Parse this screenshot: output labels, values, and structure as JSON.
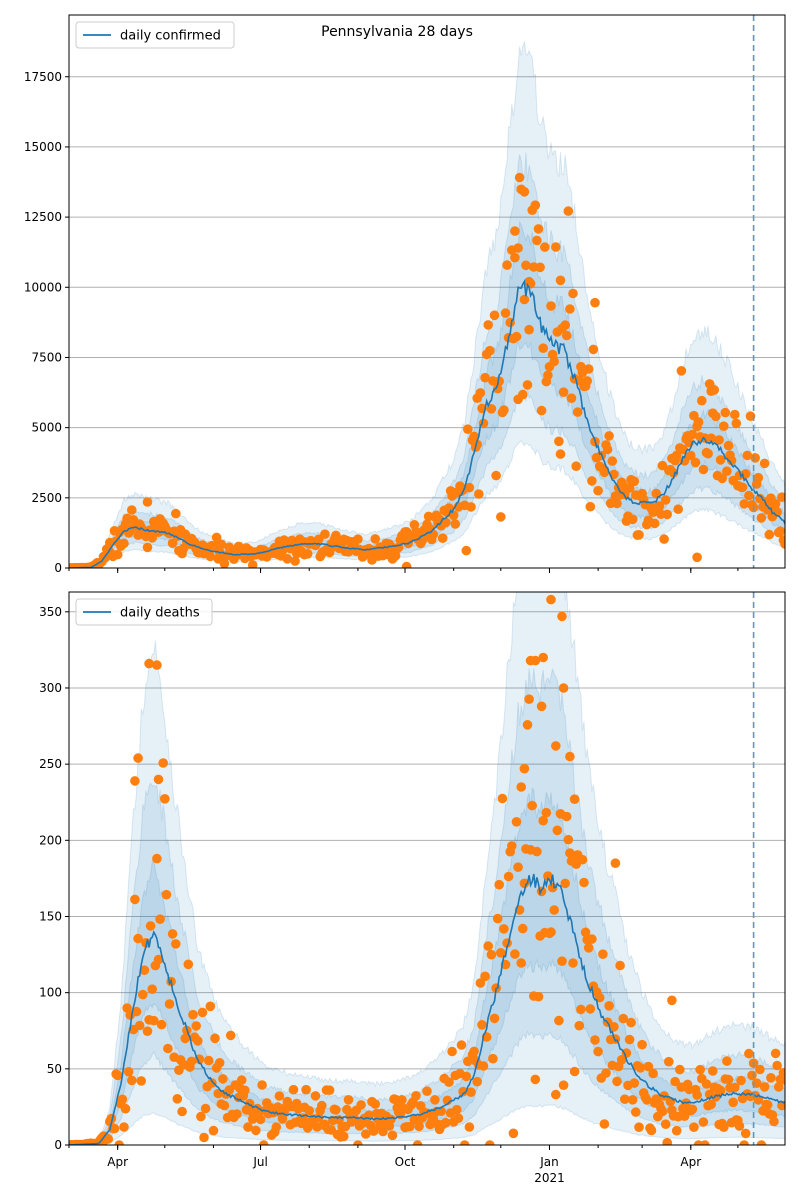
{
  "title": "Pennsylvania 28 days",
  "colors": {
    "line": "#1f77b4",
    "points": "#ff7f0e",
    "band": "#1f77b4",
    "grid": "#b0b0b0",
    "vline": "#5f9ab8"
  },
  "x_axis": {
    "start_date": "2020-03-01",
    "end_date": "2021-05-31",
    "ticks": [
      {
        "date": "2020-04-01",
        "label": "Apr"
      },
      {
        "date": "2020-07-01",
        "label": "Jul"
      },
      {
        "date": "2020-10-01",
        "label": "Oct"
      },
      {
        "date": "2021-01-01",
        "label": "Jan"
      },
      {
        "date": "2021-04-01",
        "label": "Apr"
      }
    ],
    "year_label": {
      "date": "2021-01-01",
      "label": "2021"
    },
    "vline_date": "2021-05-11"
  },
  "chart_data": [
    {
      "type": "line",
      "legend": "daily confirmed",
      "legend_loc": "upper-left",
      "ylim": [
        0,
        19700
      ],
      "yticks": [
        0,
        2500,
        5000,
        7500,
        10000,
        12500,
        15000,
        17500
      ],
      "grid": "horizontal",
      "line": [
        [
          "2020-03-01",
          0
        ],
        [
          "2020-03-15",
          20
        ],
        [
          "2020-03-22",
          250
        ],
        [
          "2020-03-29",
          800
        ],
        [
          "2020-04-05",
          1300
        ],
        [
          "2020-04-12",
          1450
        ],
        [
          "2020-04-19",
          1350
        ],
        [
          "2020-04-26",
          1300
        ],
        [
          "2020-05-03",
          1250
        ],
        [
          "2020-05-10",
          1050
        ],
        [
          "2020-05-17",
          850
        ],
        [
          "2020-05-24",
          700
        ],
        [
          "2020-06-01",
          600
        ],
        [
          "2020-06-14",
          480
        ],
        [
          "2020-06-28",
          500
        ],
        [
          "2020-07-12",
          700
        ],
        [
          "2020-07-26",
          850
        ],
        [
          "2020-08-09",
          850
        ],
        [
          "2020-08-23",
          720
        ],
        [
          "2020-09-06",
          650
        ],
        [
          "2020-09-20",
          750
        ],
        [
          "2020-10-04",
          900
        ],
        [
          "2020-10-18",
          1300
        ],
        [
          "2020-11-01",
          2100
        ],
        [
          "2020-11-08",
          2800
        ],
        [
          "2020-11-15",
          4300
        ],
        [
          "2020-11-22",
          5800
        ],
        [
          "2020-11-29",
          6500
        ],
        [
          "2020-12-06",
          8200
        ],
        [
          "2020-12-13",
          10000
        ],
        [
          "2020-12-20",
          9800
        ],
        [
          "2020-12-27",
          8500
        ],
        [
          "2021-01-03",
          7900
        ],
        [
          "2021-01-10",
          7800
        ],
        [
          "2021-01-17",
          6800
        ],
        [
          "2021-01-24",
          5400
        ],
        [
          "2021-01-31",
          4400
        ],
        [
          "2021-02-07",
          3500
        ],
        [
          "2021-02-14",
          2800
        ],
        [
          "2021-02-21",
          2400
        ],
        [
          "2021-02-28",
          2300
        ],
        [
          "2021-03-07",
          2300
        ],
        [
          "2021-03-14",
          2600
        ],
        [
          "2021-03-21",
          3200
        ],
        [
          "2021-03-28",
          4000
        ],
        [
          "2021-04-04",
          4500
        ],
        [
          "2021-04-11",
          4600
        ],
        [
          "2021-04-18",
          4300
        ],
        [
          "2021-04-25",
          3900
        ],
        [
          "2021-05-02",
          3400
        ],
        [
          "2021-05-09",
          2900
        ],
        [
          "2021-05-16",
          2500
        ],
        [
          "2021-05-23",
          2000
        ],
        [
          "2021-05-31",
          1600
        ]
      ],
      "bands": [
        {
          "opacity": 0.11,
          "rel_lo": 0.45,
          "rel_hi": 1.85
        },
        {
          "opacity": 0.11,
          "rel_lo": 0.62,
          "rel_hi": 1.45
        },
        {
          "opacity": 0.11,
          "rel_lo": 0.8,
          "rel_hi": 1.2
        }
      ],
      "points_notable": [
        [
          "2020-04-20",
          2350
        ],
        [
          "2020-12-12",
          11400
        ],
        [
          "2020-12-16",
          13400
        ],
        [
          "2020-12-19",
          10200
        ],
        [
          "2021-01-08",
          10250
        ],
        [
          "2021-01-30",
          9450
        ],
        [
          "2021-04-14",
          6300
        ],
        [
          "2021-04-05",
          380
        ],
        [
          "2020-10-02",
          50
        ],
        [
          "2020-12-10",
          12000
        ],
        [
          "2020-11-16",
          6050
        ]
      ],
      "point_seed": 7,
      "point_spread": 0.28
    },
    {
      "type": "line",
      "legend": "daily deaths",
      "legend_loc": "upper-left",
      "ylim": [
        0,
        363
      ],
      "yticks": [
        0,
        50,
        100,
        150,
        200,
        250,
        300,
        350
      ],
      "grid": "horizontal",
      "line": [
        [
          "2020-03-01",
          0
        ],
        [
          "2020-03-20",
          1
        ],
        [
          "2020-03-27",
          10
        ],
        [
          "2020-04-03",
          40
        ],
        [
          "2020-04-10",
          85
        ],
        [
          "2020-04-17",
          125
        ],
        [
          "2020-04-24",
          140
        ],
        [
          "2020-05-01",
          120
        ],
        [
          "2020-05-08",
          95
        ],
        [
          "2020-05-15",
          75
        ],
        [
          "2020-05-22",
          55
        ],
        [
          "2020-05-29",
          45
        ],
        [
          "2020-06-07",
          35
        ],
        [
          "2020-06-20",
          28
        ],
        [
          "2020-07-04",
          22
        ],
        [
          "2020-07-18",
          20
        ],
        [
          "2020-08-01",
          19
        ],
        [
          "2020-08-15",
          18
        ],
        [
          "2020-08-29",
          18
        ],
        [
          "2020-09-12",
          17
        ],
        [
          "2020-09-26",
          18
        ],
        [
          "2020-10-10",
          20
        ],
        [
          "2020-10-24",
          25
        ],
        [
          "2020-11-07",
          33
        ],
        [
          "2020-11-14",
          45
        ],
        [
          "2020-11-21",
          75
        ],
        [
          "2020-11-28",
          100
        ],
        [
          "2020-12-05",
          130
        ],
        [
          "2020-12-12",
          160
        ],
        [
          "2020-12-19",
          175
        ],
        [
          "2020-12-26",
          170
        ],
        [
          "2021-01-02",
          175
        ],
        [
          "2021-01-09",
          165
        ],
        [
          "2021-01-16",
          140
        ],
        [
          "2021-01-23",
          115
        ],
        [
          "2021-01-30",
          95
        ],
        [
          "2021-02-06",
          80
        ],
        [
          "2021-02-13",
          68
        ],
        [
          "2021-02-20",
          55
        ],
        [
          "2021-02-27",
          45
        ],
        [
          "2021-03-06",
          38
        ],
        [
          "2021-03-13",
          33
        ],
        [
          "2021-03-20",
          30
        ],
        [
          "2021-03-27",
          28
        ],
        [
          "2021-04-03",
          28
        ],
        [
          "2021-04-10",
          30
        ],
        [
          "2021-04-17",
          32
        ],
        [
          "2021-04-24",
          33
        ],
        [
          "2021-05-01",
          34
        ],
        [
          "2021-05-08",
          33
        ],
        [
          "2021-05-15",
          32
        ],
        [
          "2021-05-22",
          30
        ],
        [
          "2021-05-31",
          28
        ]
      ],
      "bands": [
        {
          "opacity": 0.11,
          "rel_lo": 0.15,
          "rel_hi": 2.35
        },
        {
          "opacity": 0.11,
          "rel_lo": 0.42,
          "rel_hi": 1.75
        },
        {
          "opacity": 0.11,
          "rel_lo": 0.68,
          "rel_hi": 1.3
        }
      ],
      "points_notable": [
        [
          "2020-04-21",
          316
        ],
        [
          "2020-04-26",
          315
        ],
        [
          "2020-04-14",
          254
        ],
        [
          "2020-04-12",
          239
        ],
        [
          "2020-04-27",
          240
        ],
        [
          "2020-12-20",
          318
        ],
        [
          "2020-12-23",
          318
        ],
        [
          "2020-12-28",
          320
        ],
        [
          "2020-12-27",
          288
        ],
        [
          "2021-01-02",
          358
        ],
        [
          "2021-01-09",
          347
        ],
        [
          "2021-01-10",
          300
        ],
        [
          "2021-01-05",
          262
        ],
        [
          "2021-01-14",
          255
        ],
        [
          "2021-01-17",
          227
        ],
        [
          "2021-02-12",
          185
        ],
        [
          "2020-12-14",
          235
        ],
        [
          "2020-12-16",
          247
        ],
        [
          "2021-03-20",
          95
        ]
      ],
      "point_seed": 11,
      "point_spread": 0.45
    }
  ]
}
